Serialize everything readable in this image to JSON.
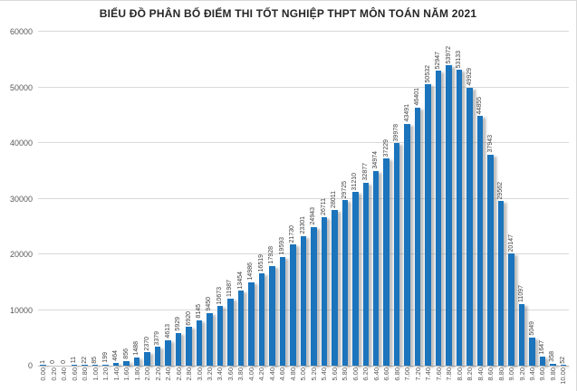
{
  "page": {
    "background": "#ffffff",
    "frame_border_color": "#d9d9d9"
  },
  "chart_data": {
    "type": "bar",
    "title": "BIỂU ĐỒ PHÂN BỐ ĐIỂM THI TỐT NGHIỆP THPT MÔN TOÁN NĂM 2021",
    "xlabel": "",
    "ylabel": "",
    "ylim": [
      0,
      60000
    ],
    "ytick_interval": 10000,
    "yticks": [
      0,
      10000,
      20000,
      30000,
      40000,
      50000,
      60000
    ],
    "grid": true,
    "legend": "none",
    "data_labels": "rotated-vertical",
    "bar_color": "#1b74bc",
    "bar_shadow_color": "rgba(110,110,110,0.45)",
    "gridline_color": "#d9d9d9",
    "axis_line_color": "#bfbfbf",
    "tick_label_color": "#595959",
    "data_label_color": "#404040",
    "title_color": "#262626",
    "categories": [
      "0.00",
      "0.20",
      "0.40",
      "0.60",
      "0.80",
      "1.00",
      "1.20",
      "1.40",
      "1.60",
      "1.80",
      "2.00",
      "2.20",
      "2.40",
      "2.60",
      "2.80",
      "3.00",
      "3.20",
      "3.40",
      "3.60",
      "3.80",
      "4.00",
      "4.20",
      "4.40",
      "4.60",
      "4.80",
      "5.00",
      "5.20",
      "5.40",
      "5.60",
      "5.80",
      "6.00",
      "6.20",
      "6.40",
      "6.60",
      "6.80",
      "7.00",
      "7.20",
      "7.40",
      "7.60",
      "7.80",
      "8.00",
      "8.20",
      "8.40",
      "8.60",
      "8.80",
      "9.00",
      "9.20",
      "9.40",
      "9.60",
      "9.80",
      "10.00"
    ],
    "values": [
      1,
      0,
      0,
      11,
      22,
      85,
      199,
      464,
      856,
      1488,
      2370,
      3379,
      4613,
      5929,
      6920,
      8145,
      9450,
      10673,
      11987,
      13454,
      14986,
      16519,
      17928,
      19593,
      21730,
      23301,
      24943,
      26711,
      28011,
      29725,
      31210,
      32877,
      34974,
      37229,
      39978,
      43491,
      46401,
      50532,
      52947,
      53972,
      53133,
      49929,
      44855,
      37943,
      29562,
      20147,
      11097,
      5049,
      1647,
      358,
      52
    ]
  }
}
